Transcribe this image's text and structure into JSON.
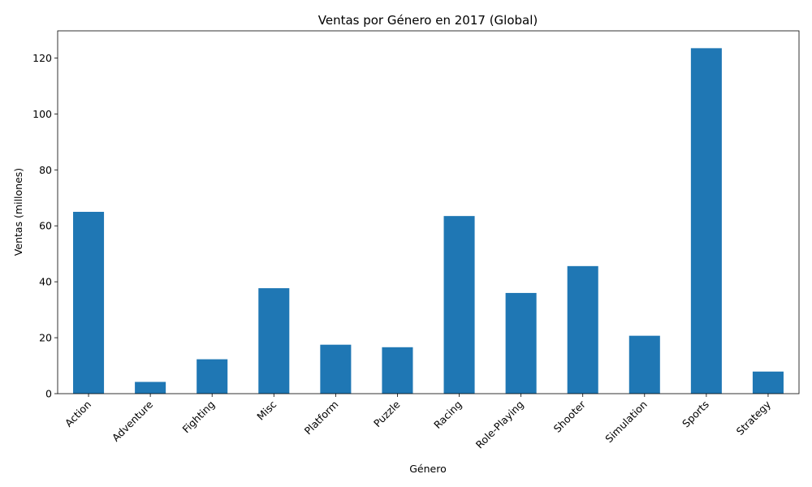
{
  "chart_data": {
    "type": "bar",
    "title": "Ventas por Género en 2017 (Global)",
    "xlabel": "Género",
    "ylabel": "Ventas (millones)",
    "categories": [
      "Action",
      "Adventure",
      "Fighting",
      "Misc",
      "Platform",
      "Puzzle",
      "Racing",
      "Role-Playing",
      "Shooter",
      "Simulation",
      "Sports",
      "Strategy"
    ],
    "values": [
      65.0,
      4.2,
      12.3,
      37.7,
      17.5,
      16.6,
      63.5,
      36.0,
      45.6,
      20.7,
      123.5,
      7.9
    ],
    "ylim": [
      0,
      129.7
    ],
    "yticks": [
      0,
      20,
      40,
      60,
      80,
      100,
      120
    ],
    "bar_color": "#1f77b4",
    "grid": false,
    "legend": "none"
  }
}
